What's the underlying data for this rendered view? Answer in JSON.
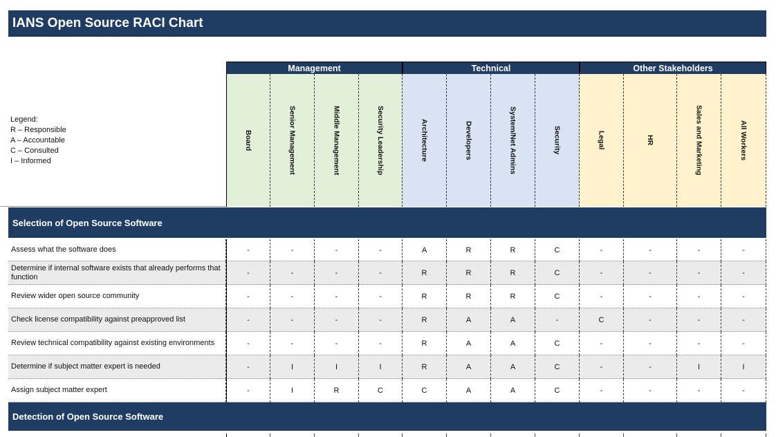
{
  "title": "IANS Open Source RACI Chart",
  "legend": {
    "heading": "Legend:",
    "items": [
      "R – Responsible",
      "A – Accountable",
      "C – Consulted",
      "I – Informed"
    ]
  },
  "groups": [
    {
      "name": "Management",
      "columns": [
        "Board",
        "Senior Management",
        "Middle Management",
        "Security Leadership"
      ]
    },
    {
      "name": "Technical",
      "columns": [
        "Architecture",
        "Developers",
        "System/Net Admins",
        "Security"
      ]
    },
    {
      "name": "Other Stakeholders",
      "columns": [
        "Legal",
        "HR",
        "Sales and Marketing",
        "All Workers"
      ]
    }
  ],
  "sections": [
    {
      "title": "Selection of Open Source Software",
      "rows": [
        {
          "task": "Assess what the software does",
          "cells": [
            "-",
            "-",
            "-",
            "-",
            "A",
            "R",
            "R",
            "C",
            "-",
            "-",
            "-",
            "-"
          ]
        },
        {
          "task": "Determine if internal software exists that already performs that function",
          "cells": [
            "-",
            "-",
            "-",
            "-",
            "R",
            "R",
            "R",
            "C",
            "-",
            "-",
            "-",
            "-"
          ]
        },
        {
          "task": "Review wider open source community",
          "cells": [
            "-",
            "-",
            "-",
            "-",
            "R",
            "R",
            "R",
            "C",
            "-",
            "-",
            "-",
            "-"
          ]
        },
        {
          "task": "Check license compatibility against preapproved list",
          "cells": [
            "-",
            "-",
            "-",
            "-",
            "R",
            "A",
            "A",
            "-",
            "C",
            "-",
            "-",
            "-"
          ]
        },
        {
          "task": "Review technical compatibility against existing environments",
          "cells": [
            "-",
            "-",
            "-",
            "-",
            "R",
            "A",
            "A",
            "C",
            "-",
            "-",
            "-",
            "-"
          ]
        },
        {
          "task": "Determine if subject matter expert is needed",
          "cells": [
            "-",
            "I",
            "I",
            "I",
            "R",
            "A",
            "A",
            "C",
            "-",
            "-",
            "I",
            "I"
          ]
        },
        {
          "task": "Assign subject matter expert",
          "cells": [
            "-",
            "I",
            "R",
            "C",
            "C",
            "A",
            "A",
            "C",
            "-",
            "-",
            "-",
            "-"
          ]
        }
      ]
    },
    {
      "title": "Detection of Open Source Software",
      "rows": []
    }
  ]
}
